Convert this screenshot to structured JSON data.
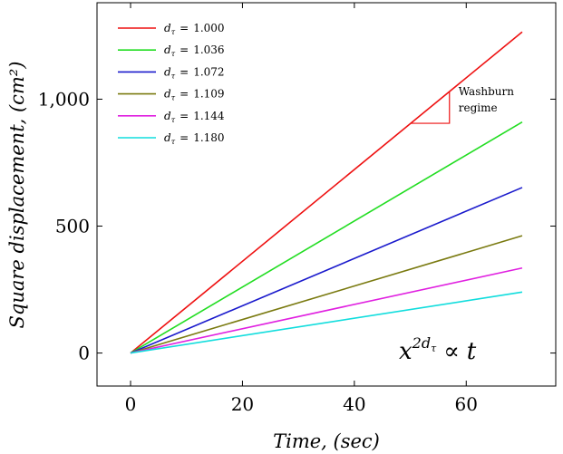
{
  "chart_data": {
    "type": "line",
    "xlabel": "Time, (sec)",
    "ylabel": "Square displacement, (cm²)",
    "xlim": [
      -6,
      76
    ],
    "ylim": [
      -130,
      1380
    ],
    "xticks": [
      0,
      20,
      40,
      60
    ],
    "yticks": [
      0,
      500,
      1000
    ],
    "ytick_labels": [
      "0",
      "500",
      "1,000"
    ],
    "series": [
      {
        "name": "d_τ = 1.000",
        "tau": "1.000",
        "color": "#ee1111",
        "x": [
          0,
          70
        ],
        "y": [
          0,
          1265
        ]
      },
      {
        "name": "d_τ = 1.036",
        "tau": "1.036",
        "color": "#22dd22",
        "x": [
          0,
          70
        ],
        "y": [
          0,
          910
        ]
      },
      {
        "name": "d_τ = 1.072",
        "tau": "1.072",
        "color": "#1a1acc",
        "x": [
          0,
          70
        ],
        "y": [
          0,
          652
        ]
      },
      {
        "name": "d_τ = 1.109",
        "tau": "1.109",
        "color": "#7a7a10",
        "x": [
          0,
          70
        ],
        "y": [
          0,
          462
        ]
      },
      {
        "name": "d_τ = 1.144",
        "tau": "1.144",
        "color": "#e020e0",
        "x": [
          0,
          70
        ],
        "y": [
          0,
          335
        ]
      },
      {
        "name": "d_τ = 1.180",
        "tau": "1.180",
        "color": "#11dddd",
        "x": [
          0,
          70
        ],
        "y": [
          0,
          240
        ]
      }
    ],
    "legend_prefix": "d",
    "legend_subscript": "τ",
    "legend_equals": "=",
    "legend_placement": "top-left",
    "annotation": {
      "line1": "Washburn",
      "line2": "regime",
      "triangle_x": [
        50,
        57
      ],
      "triangle_y": [
        905,
        1030
      ],
      "color": "#ee1111"
    },
    "formula": {
      "base": "x",
      "exp_prefix": "2d",
      "exp_subscript": "τ",
      "relation": "∝",
      "rhs": "t"
    }
  }
}
